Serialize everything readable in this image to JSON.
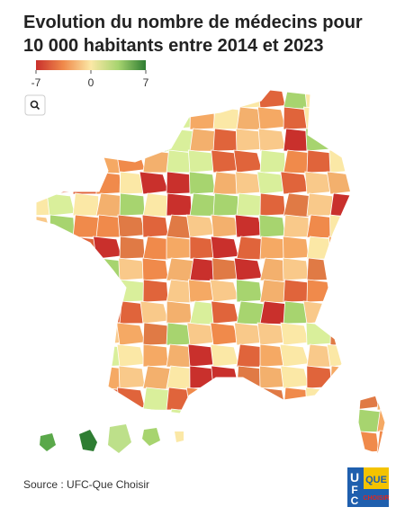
{
  "title": "Evolution du nombre de médecins pour 10 000 habitants entre 2014 et 2023",
  "legend": {
    "ticks": [
      -7,
      0,
      7
    ],
    "colors": [
      "#c9302c",
      "#f08a4b",
      "#fbe8a6",
      "#a7d46f",
      "#2e7d32"
    ]
  },
  "source": "Source : UFC-Que Choisir",
  "logo": {
    "letters": [
      "U",
      "F",
      "C"
    ],
    "words": [
      "QUE",
      "CHOISIR"
    ]
  }
}
